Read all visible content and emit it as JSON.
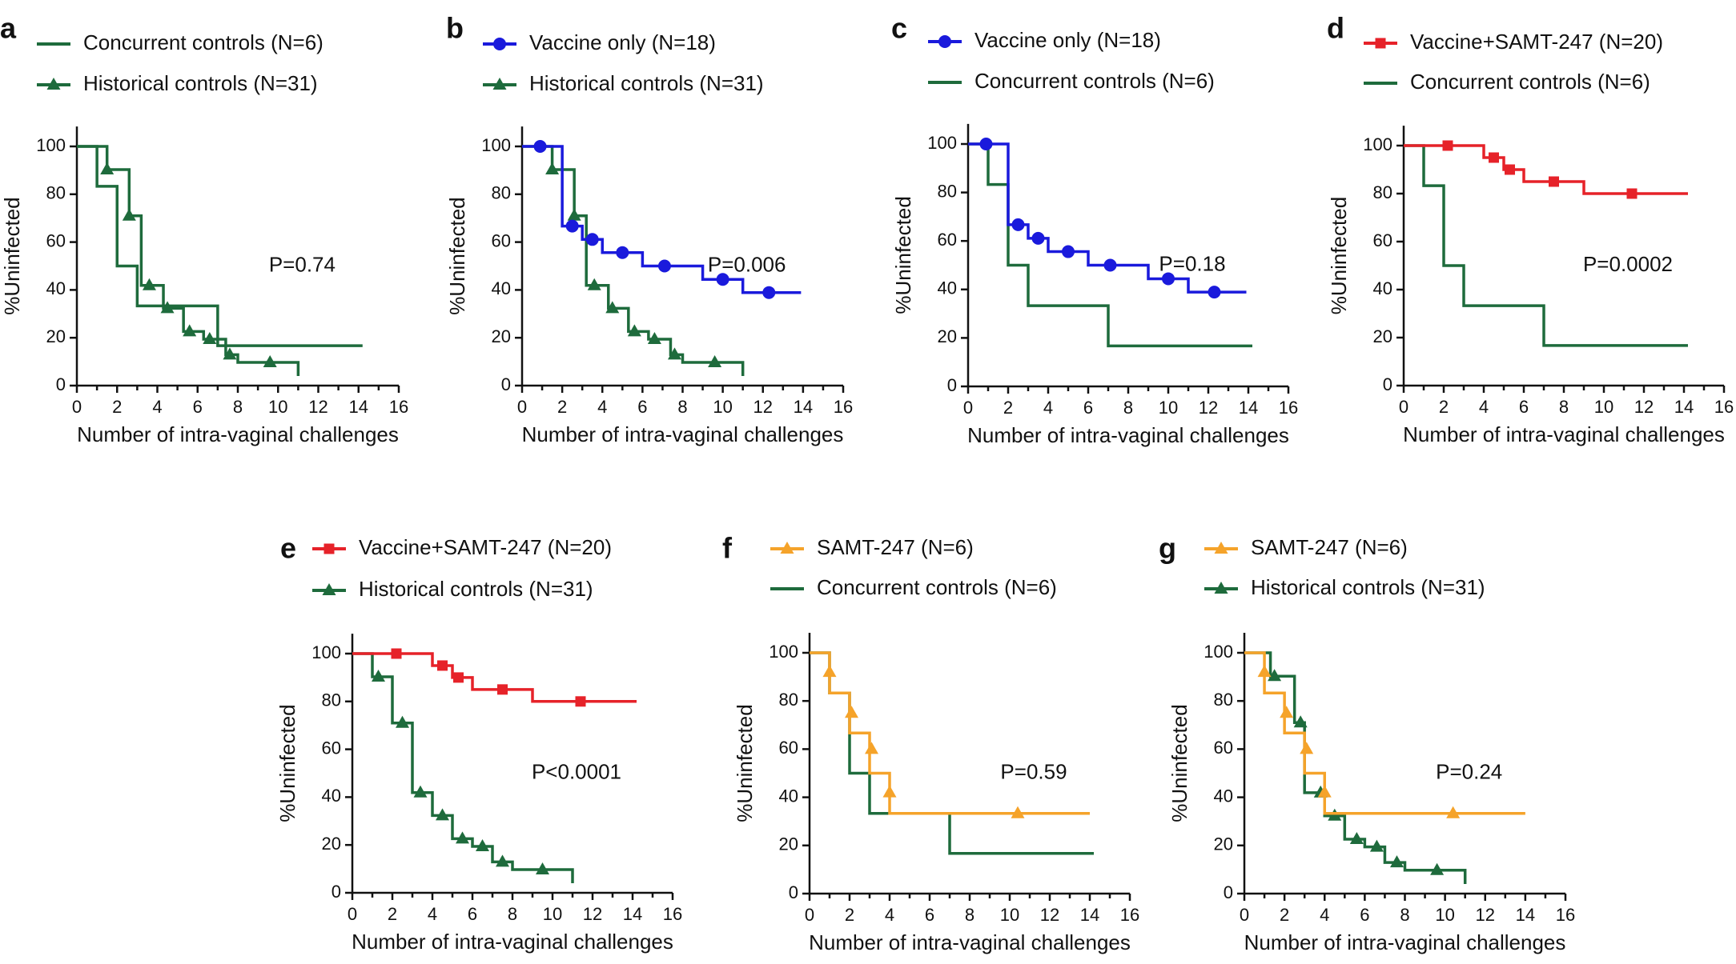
{
  "colors": {
    "concurrent": "#1e6b3c",
    "historical": "#1e6b3c",
    "vaccine": "#1a1adc",
    "vaccine_samt": "#e62229",
    "samt": "#f5a32a",
    "axis": "#111111"
  },
  "chart_data": [
    {
      "panel": "a",
      "type": "line",
      "title": "",
      "xlabel": "Number of intra-vaginal challenges",
      "ylabel": "%Uninfected",
      "xlim": [
        0,
        16
      ],
      "ylim": [
        0,
        100
      ],
      "xticks": [
        "0",
        "2",
        "4",
        "6",
        "8",
        "10",
        "12",
        "14",
        "16"
      ],
      "yticks": [
        "0",
        "20",
        "40",
        "60",
        "80",
        "100"
      ],
      "pvalue": "P=0.74",
      "series": [
        {
          "name": "Concurrent controls (N=6)",
          "color_key": "concurrent",
          "marker": "none",
          "steps": [
            [
              0,
              100
            ],
            [
              1,
              83.3
            ],
            [
              2,
              50
            ],
            [
              3,
              33.3
            ],
            [
              7,
              16.7
            ],
            [
              14.2,
              16.7
            ]
          ],
          "censor": []
        },
        {
          "name": "Historical controls (N=31)",
          "color_key": "historical",
          "marker": "triangle",
          "steps": [
            [
              0,
              100
            ],
            [
              1.5,
              90.3
            ],
            [
              2.6,
              71
            ],
            [
              3.2,
              41.9
            ],
            [
              4.3,
              32.3
            ],
            [
              5.3,
              22.6
            ],
            [
              6.3,
              19.4
            ],
            [
              7.4,
              12.9
            ],
            [
              8,
              9.7
            ],
            [
              11,
              9.7
            ],
            [
              11,
              4
            ]
          ],
          "censor": [
            [
              1.5,
              90.3
            ],
            [
              2.6,
              71
            ],
            [
              3.6,
              41.9
            ],
            [
              4.5,
              32.3
            ],
            [
              5.6,
              22.6
            ],
            [
              6.6,
              19.4
            ],
            [
              7.6,
              12.9
            ],
            [
              9.6,
              9.7
            ]
          ]
        }
      ]
    },
    {
      "panel": "b",
      "type": "line",
      "title": "",
      "xlabel": "Number of intra-vaginal challenges",
      "ylabel": "%Uninfected",
      "xlim": [
        0,
        16
      ],
      "ylim": [
        0,
        100
      ],
      "xticks": [
        "0",
        "2",
        "4",
        "6",
        "8",
        "10",
        "12",
        "14",
        "16"
      ],
      "yticks": [
        "0",
        "20",
        "40",
        "60",
        "80",
        "100"
      ],
      "pvalue": "P=0.006",
      "series": [
        {
          "name": "Vaccine only (N=18)",
          "color_key": "vaccine",
          "marker": "circle",
          "steps": [
            [
              0,
              100
            ],
            [
              2,
              66.7
            ],
            [
              3,
              61.1
            ],
            [
              4,
              55.6
            ],
            [
              6,
              50
            ],
            [
              9,
              44.4
            ],
            [
              11,
              38.9
            ],
            [
              13.9,
              38.9
            ]
          ],
          "censor": [
            [
              0.9,
              100
            ],
            [
              2.5,
              66.7
            ],
            [
              3.5,
              61.1
            ],
            [
              5,
              55.6
            ],
            [
              7.1,
              50
            ],
            [
              10,
              44.4
            ],
            [
              12.3,
              38.9
            ]
          ]
        },
        {
          "name": "Historical controls (N=31)",
          "color_key": "historical",
          "marker": "triangle",
          "steps": [
            [
              0,
              100
            ],
            [
              1.5,
              90.3
            ],
            [
              2.6,
              71
            ],
            [
              3.2,
              41.9
            ],
            [
              4.3,
              32.3
            ],
            [
              5.3,
              22.6
            ],
            [
              6.3,
              19.4
            ],
            [
              7.4,
              12.9
            ],
            [
              8,
              9.7
            ],
            [
              11,
              9.7
            ],
            [
              11,
              4
            ]
          ],
          "censor": [
            [
              1.5,
              90.3
            ],
            [
              2.6,
              71
            ],
            [
              3.6,
              41.9
            ],
            [
              4.5,
              32.3
            ],
            [
              5.6,
              22.6
            ],
            [
              6.6,
              19.4
            ],
            [
              7.6,
              12.9
            ],
            [
              9.6,
              9.7
            ]
          ]
        }
      ]
    },
    {
      "panel": "c",
      "type": "line",
      "title": "",
      "xlabel": "Number of intra-vaginal challenges",
      "ylabel": "%Uninfected",
      "xlim": [
        0,
        16
      ],
      "ylim": [
        0,
        100
      ],
      "xticks": [
        "0",
        "2",
        "4",
        "6",
        "8",
        "10",
        "12",
        "14",
        "16"
      ],
      "yticks": [
        "0",
        "20",
        "40",
        "60",
        "80",
        "100"
      ],
      "pvalue": "P=0.18",
      "series": [
        {
          "name": "Vaccine only (N=18)",
          "color_key": "vaccine",
          "marker": "circle",
          "steps": [
            [
              0,
              100
            ],
            [
              2,
              66.7
            ],
            [
              3,
              61.1
            ],
            [
              4,
              55.6
            ],
            [
              6,
              50
            ],
            [
              9,
              44.4
            ],
            [
              11,
              38.9
            ],
            [
              13.9,
              38.9
            ]
          ],
          "censor": [
            [
              0.9,
              100
            ],
            [
              2.5,
              66.7
            ],
            [
              3.5,
              61.1
            ],
            [
              5,
              55.6
            ],
            [
              7.1,
              50
            ],
            [
              10,
              44.4
            ],
            [
              12.3,
              38.9
            ]
          ]
        },
        {
          "name": "Concurrent controls (N=6)",
          "color_key": "concurrent",
          "marker": "none",
          "steps": [
            [
              0,
              100
            ],
            [
              1,
              83.3
            ],
            [
              2,
              50
            ],
            [
              3,
              33.3
            ],
            [
              7,
              16.7
            ],
            [
              14.2,
              16.7
            ]
          ],
          "censor": []
        }
      ]
    },
    {
      "panel": "d",
      "type": "line",
      "title": "",
      "xlabel": "Number of intra-vaginal challenges",
      "ylabel": "%Uninfected",
      "xlim": [
        0,
        16
      ],
      "ylim": [
        0,
        100
      ],
      "xticks": [
        "0",
        "2",
        "4",
        "6",
        "8",
        "10",
        "12",
        "14",
        "16"
      ],
      "yticks": [
        "0",
        "20",
        "40",
        "60",
        "80",
        "100"
      ],
      "pvalue": "P=0.0002",
      "series": [
        {
          "name": "Vaccine+SAMT-247 (N=20)",
          "color_key": "vaccine_samt",
          "marker": "square",
          "steps": [
            [
              0,
              100
            ],
            [
              4,
              95
            ],
            [
              5,
              90
            ],
            [
              6,
              85
            ],
            [
              9,
              80
            ],
            [
              14.2,
              80
            ]
          ],
          "censor": [
            [
              2.2,
              100
            ],
            [
              4.5,
              95
            ],
            [
              5.3,
              90
            ],
            [
              7.5,
              85
            ],
            [
              11.4,
              80
            ]
          ]
        },
        {
          "name": "Concurrent controls (N=6)",
          "color_key": "concurrent",
          "marker": "none",
          "steps": [
            [
              0,
              100
            ],
            [
              1,
              83.3
            ],
            [
              2,
              50
            ],
            [
              3,
              33.3
            ],
            [
              7,
              16.7
            ],
            [
              14.2,
              16.7
            ]
          ],
          "censor": []
        }
      ]
    },
    {
      "panel": "e",
      "type": "line",
      "title": "",
      "xlabel": "Number of intra-vaginal challenges",
      "ylabel": "%Uninfected",
      "xlim": [
        0,
        16
      ],
      "ylim": [
        0,
        100
      ],
      "xticks": [
        "0",
        "2",
        "4",
        "6",
        "8",
        "10",
        "12",
        "14",
        "16"
      ],
      "yticks": [
        "0",
        "20",
        "40",
        "60",
        "80",
        "100"
      ],
      "pvalue": "P<0.0001",
      "series": [
        {
          "name": "Vaccine+SAMT-247 (N=20)",
          "color_key": "vaccine_samt",
          "marker": "square",
          "steps": [
            [
              0,
              100
            ],
            [
              4,
              95
            ],
            [
              5,
              90
            ],
            [
              6,
              85
            ],
            [
              9,
              80
            ],
            [
              14.2,
              80
            ]
          ],
          "censor": [
            [
              2.2,
              100
            ],
            [
              4.5,
              95
            ],
            [
              5.3,
              90
            ],
            [
              7.5,
              85
            ],
            [
              11.4,
              80
            ]
          ]
        },
        {
          "name": "Historical controls (N=31)",
          "color_key": "historical",
          "marker": "triangle",
          "steps": [
            [
              0,
              100
            ],
            [
              1,
              90.3
            ],
            [
              2,
              71
            ],
            [
              3,
              41.9
            ],
            [
              4,
              32.3
            ],
            [
              5,
              22.6
            ],
            [
              6,
              19.4
            ],
            [
              7,
              12.9
            ],
            [
              8,
              9.7
            ],
            [
              11,
              9.7
            ],
            [
              11,
              4
            ]
          ],
          "censor": [
            [
              1.3,
              90.3
            ],
            [
              2.5,
              71
            ],
            [
              3.4,
              41.9
            ],
            [
              4.5,
              32.3
            ],
            [
              5.5,
              22.6
            ],
            [
              6.5,
              19.4
            ],
            [
              7.5,
              12.9
            ],
            [
              9.5,
              9.7
            ]
          ]
        }
      ]
    },
    {
      "panel": "f",
      "type": "line",
      "title": "",
      "xlabel": "Number of intra-vaginal challenges",
      "ylabel": "%Uninfected",
      "xlim": [
        0,
        16
      ],
      "ylim": [
        0,
        100
      ],
      "xticks": [
        "0",
        "2",
        "4",
        "6",
        "8",
        "10",
        "12",
        "14",
        "16"
      ],
      "yticks": [
        "0",
        "20",
        "40",
        "60",
        "80",
        "100"
      ],
      "pvalue": "P=0.59",
      "series": [
        {
          "name": "SAMT-247 (N=6)",
          "color_key": "samt",
          "marker": "triangle",
          "steps": [
            [
              0,
              100
            ],
            [
              1,
              83.3
            ],
            [
              2,
              66.7
            ],
            [
              3,
              50
            ],
            [
              4,
              33.3
            ],
            [
              14,
              33.3
            ]
          ],
          "censor": [
            [
              1,
              92
            ],
            [
              2.1,
              75
            ],
            [
              3.1,
              60
            ],
            [
              4,
              42
            ],
            [
              10.4,
              33.3
            ]
          ]
        },
        {
          "name": "Concurrent controls (N=6)",
          "color_key": "concurrent",
          "marker": "none",
          "steps": [
            [
              0,
              100
            ],
            [
              1,
              83.3
            ],
            [
              2,
              50
            ],
            [
              3,
              33.3
            ],
            [
              7,
              16.7
            ],
            [
              14.2,
              16.7
            ]
          ],
          "censor": []
        }
      ]
    },
    {
      "panel": "g",
      "type": "line",
      "title": "",
      "xlabel": "Number of intra-vaginal challenges",
      "ylabel": "%Uninfected",
      "xlim": [
        0,
        16
      ],
      "ylim": [
        0,
        100
      ],
      "xticks": [
        "0",
        "2",
        "4",
        "6",
        "8",
        "10",
        "12",
        "14",
        "16"
      ],
      "yticks": [
        "0",
        "20",
        "40",
        "60",
        "80",
        "100"
      ],
      "pvalue": "P=0.24",
      "series": [
        {
          "name": "SAMT-247 (N=6)",
          "color_key": "samt",
          "marker": "triangle",
          "steps": [
            [
              0,
              100
            ],
            [
              1,
              83.3
            ],
            [
              2,
              66.7
            ],
            [
              3,
              50
            ],
            [
              4,
              33.3
            ],
            [
              14,
              33.3
            ]
          ],
          "censor": [
            [
              1,
              92
            ],
            [
              2.1,
              75
            ],
            [
              3.1,
              60
            ],
            [
              4,
              42
            ],
            [
              10.4,
              33.3
            ]
          ]
        },
        {
          "name": "Historical controls (N=31)",
          "color_key": "historical",
          "marker": "triangle",
          "steps": [
            [
              0,
              100
            ],
            [
              1.3,
              90.3
            ],
            [
              2.5,
              71
            ],
            [
              3,
              41.9
            ],
            [
              4,
              32.3
            ],
            [
              5,
              22.6
            ],
            [
              6,
              19.4
            ],
            [
              7,
              12.9
            ],
            [
              8,
              9.7
            ],
            [
              11,
              9.7
            ],
            [
              11,
              4
            ]
          ],
          "censor": [
            [
              1.5,
              90.3
            ],
            [
              2.8,
              71
            ],
            [
              3.8,
              41.9
            ],
            [
              4.5,
              32.3
            ],
            [
              5.6,
              22.6
            ],
            [
              6.6,
              19.4
            ],
            [
              7.6,
              12.9
            ],
            [
              9.6,
              9.7
            ]
          ]
        }
      ]
    }
  ]
}
